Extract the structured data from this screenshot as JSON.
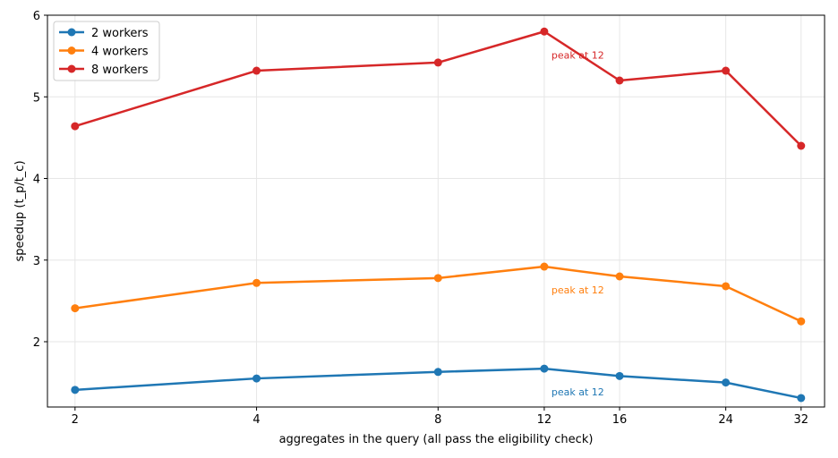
{
  "chart_data": {
    "type": "line",
    "title": "",
    "xlabel": "aggregates in the query (all pass the eligibility check)",
    "ylabel": "speedup (t_p/t_c)",
    "x": [
      2,
      4,
      8,
      12,
      16,
      24,
      32
    ],
    "x_tick_labels": [
      "2",
      "4",
      "8",
      "12",
      "16",
      "24",
      "32"
    ],
    "x_scale": "log2",
    "xlim": [
      1.8,
      35
    ],
    "ylim": [
      1.2,
      6.0
    ],
    "y_ticks": [
      2,
      3,
      4,
      5,
      6
    ],
    "y_tick_labels": [
      "2",
      "3",
      "4",
      "5",
      "6"
    ],
    "grid": true,
    "legend_position": "top-left",
    "series": [
      {
        "name": "2 workers",
        "color": "#1f77b4",
        "values": [
          1.41,
          1.55,
          1.63,
          1.67,
          1.58,
          1.5,
          1.31
        ],
        "annotation": "peak at 12"
      },
      {
        "name": "4 workers",
        "color": "#ff7f0e",
        "values": [
          2.41,
          2.72,
          2.78,
          2.92,
          2.8,
          2.68,
          2.25
        ],
        "annotation": "peak at 12"
      },
      {
        "name": "8 workers",
        "color": "#d62728",
        "values": [
          4.64,
          5.32,
          5.42,
          5.8,
          5.2,
          5.32,
          4.4
        ],
        "annotation": "peak at 12"
      }
    ]
  }
}
